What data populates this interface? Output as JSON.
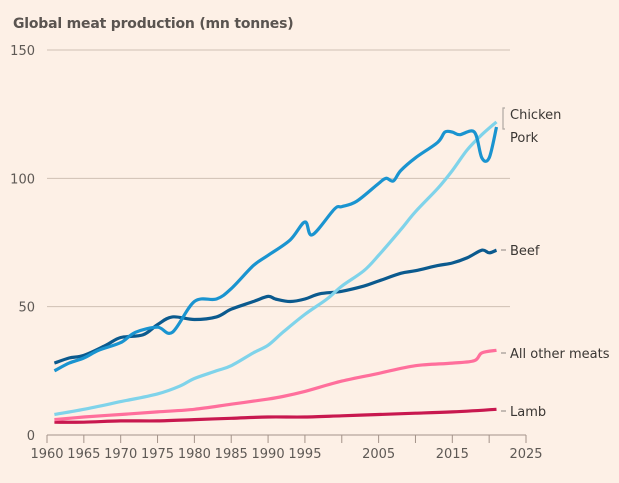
{
  "chart_data": {
    "type": "line",
    "title": "Global meat production (mn tonnes)",
    "xlabel": "",
    "ylabel": "",
    "xlim": [
      1960,
      2025
    ],
    "ylim": [
      0,
      150
    ],
    "x_ticks": [
      1960,
      1965,
      1970,
      1975,
      1980,
      1985,
      1990,
      1995,
      2000,
      2005,
      2010,
      2015,
      2020,
      2025
    ],
    "x_tick_labels": [
      "1960",
      "1965",
      "1970",
      "1975",
      "1980",
      "1985",
      "1990",
      "1995",
      "",
      "2005",
      "",
      "2015",
      "",
      "2025"
    ],
    "y_ticks": [
      0,
      50,
      100,
      150
    ],
    "y_tick_labels": [
      "0",
      "50",
      "100",
      "150"
    ],
    "grid": "horizontal",
    "legend": "direct labels at right end of lines",
    "series": [
      {
        "name": "Chicken",
        "color": "#7fd3ea",
        "x": [
          1961,
          1965,
          1970,
          1975,
          1978,
          1980,
          1983,
          1985,
          1988,
          1990,
          1992,
          1995,
          1998,
          2000,
          2003,
          2005,
          2008,
          2010,
          2013,
          2015,
          2017,
          2019,
          2021
        ],
        "values": [
          8,
          10,
          13,
          16,
          19,
          22,
          25,
          27,
          32,
          35,
          40,
          47,
          53,
          58,
          64,
          70,
          80,
          87,
          96,
          103,
          111,
          117,
          122
        ]
      },
      {
        "name": "Pork",
        "color": "#1a94d0",
        "x": [
          1961,
          1963,
          1965,
          1967,
          1970,
          1972,
          1975,
          1977,
          1980,
          1983,
          1985,
          1988,
          1990,
          1993,
          1995,
          1996,
          1999,
          2000,
          2002,
          2005,
          2006,
          2007,
          2008,
          2010,
          2013,
          2014,
          2015,
          2016,
          2018,
          2019,
          2020,
          2021
        ],
        "values": [
          25,
          28,
          30,
          33,
          36,
          40,
          42,
          40,
          52,
          53,
          57,
          66,
          70,
          76,
          83,
          78,
          88,
          89,
          91,
          98,
          100,
          99,
          103,
          108,
          114,
          118,
          118,
          117,
          118,
          108,
          108,
          120
        ]
      },
      {
        "name": "Beef",
        "color": "#0b5a8e",
        "x": [
          1961,
          1963,
          1965,
          1968,
          1970,
          1973,
          1975,
          1977,
          1980,
          1983,
          1985,
          1988,
          1990,
          1991,
          1993,
          1995,
          1997,
          2000,
          2003,
          2005,
          2008,
          2010,
          2013,
          2015,
          2017,
          2019,
          2020,
          2021
        ],
        "values": [
          28,
          30,
          31,
          35,
          38,
          39,
          43,
          46,
          45,
          46,
          49,
          52,
          54,
          53,
          52,
          53,
          55,
          56,
          58,
          60,
          63,
          64,
          66,
          67,
          69,
          72,
          71,
          72
        ]
      },
      {
        "name": "All other meats",
        "color": "#ff6f9c",
        "x": [
          1961,
          1965,
          1970,
          1975,
          1980,
          1985,
          1990,
          1992,
          1995,
          2000,
          2005,
          2010,
          2015,
          2018,
          2019,
          2021
        ],
        "values": [
          6,
          7,
          8,
          9,
          10,
          12,
          14,
          15,
          17,
          21,
          24,
          27,
          28,
          29,
          32,
          33
        ]
      },
      {
        "name": "Lamb",
        "color": "#c8184f",
        "x": [
          1961,
          1965,
          1970,
          1975,
          1980,
          1985,
          1990,
          1995,
          2000,
          2005,
          2010,
          2015,
          2021
        ],
        "values": [
          5,
          5,
          5.5,
          5.5,
          6,
          6.5,
          7,
          7,
          7.5,
          8,
          8.5,
          9,
          10
        ]
      }
    ]
  }
}
